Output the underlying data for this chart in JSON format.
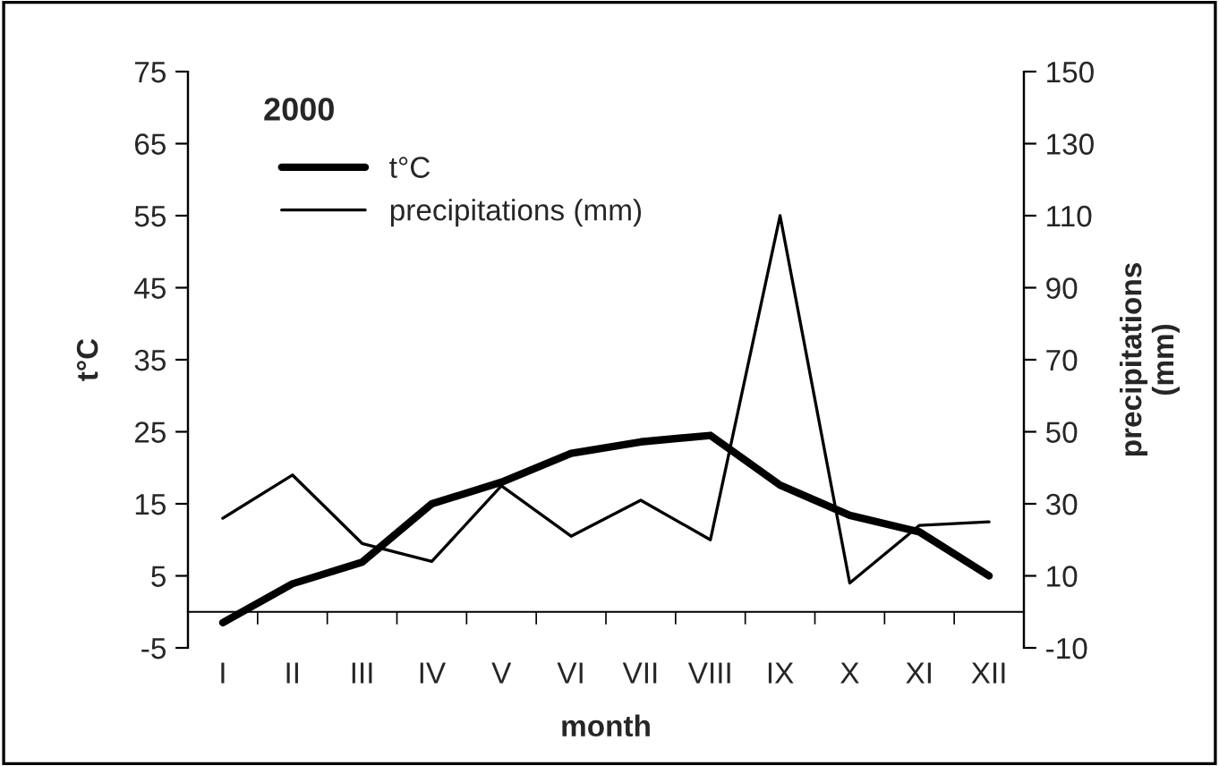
{
  "chart_data": {
    "type": "line",
    "title": "2000",
    "xlabel": "month",
    "ylabel": "t°C",
    "y2label": "precipitations\n(mm)",
    "categories": [
      "I",
      "II",
      "III",
      "IV",
      "V",
      "VI",
      "VII",
      "VIII",
      "IX",
      "X",
      "XI",
      "XII"
    ],
    "series": [
      {
        "name": "t°C",
        "color": "#000000",
        "values": [
          -1.5,
          3.9,
          6.9,
          15,
          18,
          22,
          23.6,
          24.5,
          17.6,
          13.4,
          11.1,
          5
        ]
      },
      {
        "name": "precipitations (mm)",
        "color": "#000000",
        "axis": "y2",
        "values": [
          26,
          38,
          19,
          14,
          35,
          21,
          31,
          20,
          110,
          8,
          24,
          25
        ]
      }
    ],
    "ylim": [
      -5,
      75
    ],
    "yticks": [
      -5,
      5,
      15,
      25,
      35,
      45,
      55,
      65,
      75
    ],
    "y2lim": [
      -10,
      150
    ],
    "y2ticks": [
      -10,
      10,
      30,
      50,
      70,
      90,
      110,
      130,
      150
    ],
    "grid": false,
    "legend": "top left",
    "marker": "none",
    "line_style": "solid"
  }
}
